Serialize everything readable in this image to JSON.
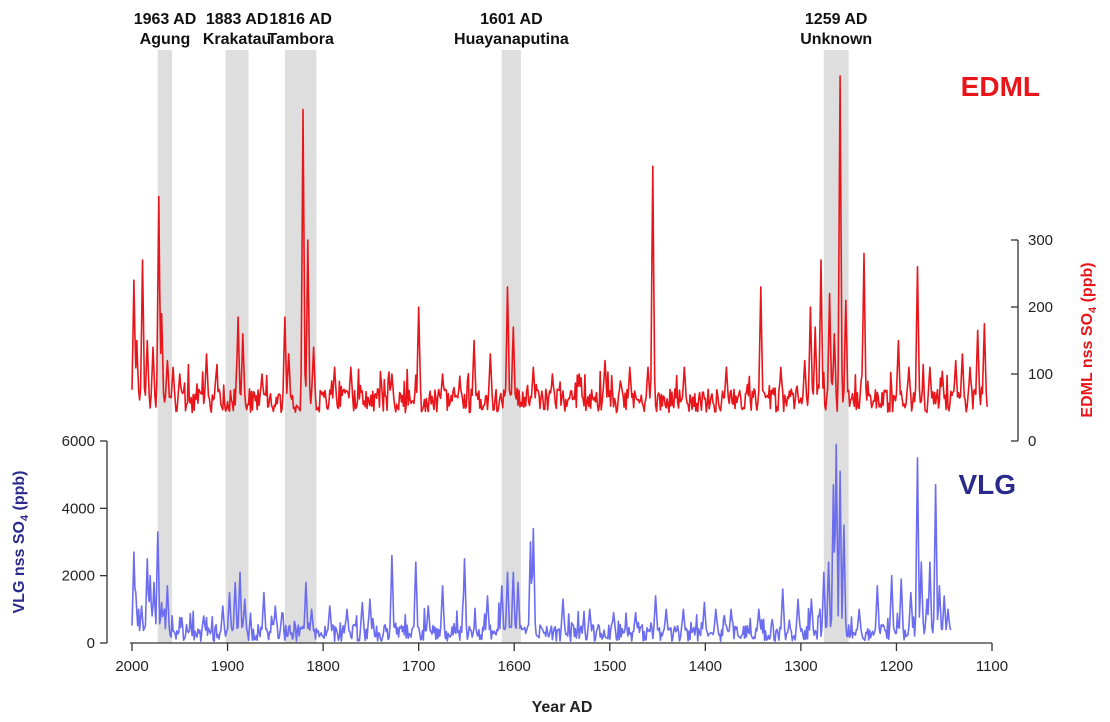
{
  "chart_data": {
    "type": "line",
    "x_axis": {
      "label": "Year AD",
      "range": [
        2000,
        1100
      ],
      "reversed": true,
      "ticks": [
        2000,
        1900,
        1800,
        1700,
        1600,
        1500,
        1400,
        1300,
        1200,
        1100
      ]
    },
    "volcanic_events": [
      {
        "year_label": "1963 AD",
        "name": "Agung",
        "band": [
          1973,
          1958
        ]
      },
      {
        "year_label": "1883 AD",
        "name": "Krakatau",
        "band": [
          1902,
          1878
        ]
      },
      {
        "year_label": "1816 AD",
        "name": "Tambora",
        "band": [
          1840,
          1807
        ]
      },
      {
        "year_label": "1601 AD",
        "name": "Huayanaputina",
        "band": [
          1613,
          1593
        ]
      },
      {
        "year_label": "1259 AD",
        "name": "Unknown",
        "band": [
          1276,
          1250
        ]
      }
    ],
    "series": [
      {
        "name": "EDML",
        "color": "#e8161b",
        "y_axis": {
          "label_main": "EDML nss SO",
          "label_sub": "4",
          "label_unit": " (ppb)",
          "side": "right",
          "range": [
            0,
            300
          ],
          "ticks": [
            0,
            100,
            200,
            300
          ]
        },
        "x_range": [
          2000,
          1105
        ],
        "baseline": 60,
        "peaks": [
          [
            1998,
            240
          ],
          [
            1995,
            150
          ],
          [
            1989,
            270
          ],
          [
            1984,
            150
          ],
          [
            1978,
            140
          ],
          [
            1972,
            365
          ],
          [
            1969,
            190
          ],
          [
            1963,
            120
          ],
          [
            1957,
            110
          ],
          [
            1950,
            100
          ],
          [
            1922,
            130
          ],
          [
            1912,
            100
          ],
          [
            1889,
            185
          ],
          [
            1884,
            160
          ],
          [
            1864,
            100
          ],
          [
            1840,
            185
          ],
          [
            1836,
            130
          ],
          [
            1821,
            495
          ],
          [
            1816,
            300
          ],
          [
            1810,
            140
          ],
          [
            1788,
            110
          ],
          [
            1771,
            110
          ],
          [
            1728,
            100
          ],
          [
            1700,
            200
          ],
          [
            1675,
            100
          ],
          [
            1642,
            150
          ],
          [
            1625,
            130
          ],
          [
            1607,
            230
          ],
          [
            1601,
            170
          ],
          [
            1580,
            110
          ],
          [
            1560,
            100
          ],
          [
            1532,
            100
          ],
          [
            1505,
            120
          ],
          [
            1479,
            110
          ],
          [
            1460,
            110
          ],
          [
            1455,
            410
          ],
          [
            1422,
            110
          ],
          [
            1378,
            110
          ],
          [
            1342,
            230
          ],
          [
            1321,
            110
          ],
          [
            1296,
            120
          ],
          [
            1290,
            200
          ],
          [
            1285,
            170
          ],
          [
            1279,
            270
          ],
          [
            1270,
            220
          ],
          [
            1265,
            160
          ],
          [
            1259,
            545
          ],
          [
            1253,
            210
          ],
          [
            1234,
            280
          ],
          [
            1198,
            150
          ],
          [
            1187,
            110
          ],
          [
            1178,
            260
          ],
          [
            1165,
            110
          ],
          [
            1152,
            100
          ],
          [
            1138,
            120
          ],
          [
            1131,
            130
          ],
          [
            1123,
            110
          ],
          [
            1115,
            165
          ],
          [
            1108,
            175
          ]
        ]
      },
      {
        "name": "VLG",
        "color": "#6b6cf0",
        "y_axis": {
          "label_main": "VLG nss SO",
          "label_sub": "4",
          "label_unit": " (ppb)",
          "side": "left",
          "range": [
            0,
            6000
          ],
          "ticks": [
            0,
            2000,
            4000,
            6000
          ]
        },
        "x_range": [
          2000,
          1143
        ],
        "baseline": 300,
        "peaks": [
          [
            1998,
            2700
          ],
          [
            1996,
            1500
          ],
          [
            1990,
            1100
          ],
          [
            1984,
            2500
          ],
          [
            1981,
            2000
          ],
          [
            1977,
            1800
          ],
          [
            1973,
            3300
          ],
          [
            1969,
            1200
          ],
          [
            1963,
            1700
          ],
          [
            1925,
            800
          ],
          [
            1905,
            1100
          ],
          [
            1898,
            1500
          ],
          [
            1892,
            1800
          ],
          [
            1887,
            2100
          ],
          [
            1882,
            1300
          ],
          [
            1862,
            1500
          ],
          [
            1850,
            1100
          ],
          [
            1843,
            900
          ],
          [
            1818,
            1800
          ],
          [
            1812,
            1000
          ],
          [
            1793,
            1100
          ],
          [
            1775,
            1000
          ],
          [
            1759,
            1200
          ],
          [
            1751,
            1300
          ],
          [
            1728,
            2600
          ],
          [
            1703,
            2400
          ],
          [
            1690,
            1100
          ],
          [
            1675,
            1700
          ],
          [
            1652,
            2500
          ],
          [
            1628,
            1400
          ],
          [
            1613,
            1700
          ],
          [
            1607,
            2100
          ],
          [
            1601,
            2100
          ],
          [
            1596,
            1800
          ],
          [
            1583,
            3000
          ],
          [
            1580,
            3400
          ],
          [
            1549,
            1300
          ],
          [
            1521,
            1000
          ],
          [
            1496,
            900
          ],
          [
            1473,
            900
          ],
          [
            1452,
            1400
          ],
          [
            1441,
            1000
          ],
          [
            1423,
            1000
          ],
          [
            1401,
            1200
          ],
          [
            1389,
            1000
          ],
          [
            1373,
            1000
          ],
          [
            1344,
            1000
          ],
          [
            1319,
            1600
          ],
          [
            1303,
            1300
          ],
          [
            1289,
            1300
          ],
          [
            1276,
            2100
          ],
          [
            1271,
            2400
          ],
          [
            1266,
            4700
          ],
          [
            1263,
            5900
          ],
          [
            1259,
            5100
          ],
          [
            1255,
            3500
          ],
          [
            1239,
            1000
          ],
          [
            1220,
            1700
          ],
          [
            1205,
            2000
          ],
          [
            1195,
            1900
          ],
          [
            1185,
            1500
          ],
          [
            1178,
            5500
          ],
          [
            1174,
            2400
          ],
          [
            1168,
            1300
          ],
          [
            1165,
            2400
          ],
          [
            1159,
            4700
          ],
          [
            1155,
            1700
          ],
          [
            1150,
            1400
          ],
          [
            1146,
            1000
          ]
        ]
      }
    ]
  }
}
